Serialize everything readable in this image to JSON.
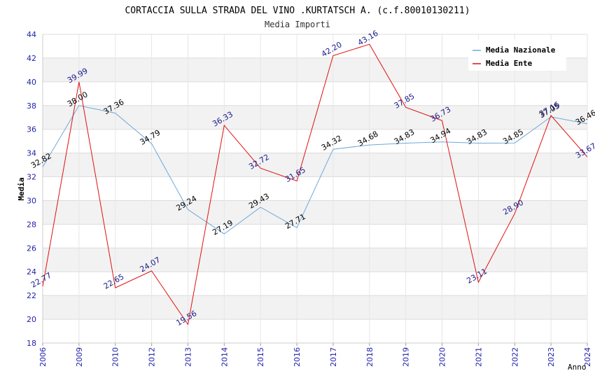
{
  "chart_data": {
    "type": "line",
    "title": "CORTACCIA SULLA STRADA DEL VINO .KURTATSCH A. (c.f.80010130211)",
    "subtitle": "Media Importi",
    "xlabel": "Anno",
    "ylabel": "Media",
    "ylim": [
      18,
      44
    ],
    "yticks": [
      18,
      20,
      22,
      24,
      26,
      28,
      30,
      32,
      34,
      36,
      38,
      40,
      42,
      44
    ],
    "grid": true,
    "legend_position": "top-right",
    "categories": [
      "2006",
      "2009",
      "2010",
      "2012",
      "2013",
      "2014",
      "2015",
      "2016",
      "2017",
      "2018",
      "2019",
      "2020",
      "2021",
      "2022",
      "2023",
      "2024"
    ],
    "series": [
      {
        "name": "Media Nazionale",
        "color": "#6fa8dc",
        "label_color": "#000000",
        "values": [
          32.82,
          38.0,
          37.36,
          34.79,
          29.24,
          27.19,
          29.43,
          27.71,
          34.32,
          34.68,
          34.83,
          34.94,
          34.83,
          34.85,
          37.05,
          36.46
        ],
        "labels": [
          "32.82",
          "38.00",
          "37.36",
          "34.79",
          "29.24",
          "27.19",
          "29.43",
          "27.71",
          "34.32",
          "34.68",
          "34.83",
          "34.94",
          "34.83",
          "34.85",
          "37.05",
          "36.46"
        ]
      },
      {
        "name": "Media Ente",
        "color": "#e01010",
        "label_color": "#1a1a8c",
        "values": [
          22.77,
          39.99,
          22.65,
          24.07,
          19.56,
          36.33,
          32.72,
          31.65,
          42.2,
          43.16,
          37.85,
          36.73,
          23.11,
          28.9,
          37.16,
          33.67
        ],
        "labels": [
          "22.77",
          "39.99",
          "22.65",
          "24.07",
          "19.56",
          "36.33",
          "32.72",
          "31.65",
          "42.20",
          "43.16",
          "37.85",
          "36.73",
          "23.11",
          "28.90",
          "37.16",
          "33.67"
        ]
      }
    ]
  }
}
